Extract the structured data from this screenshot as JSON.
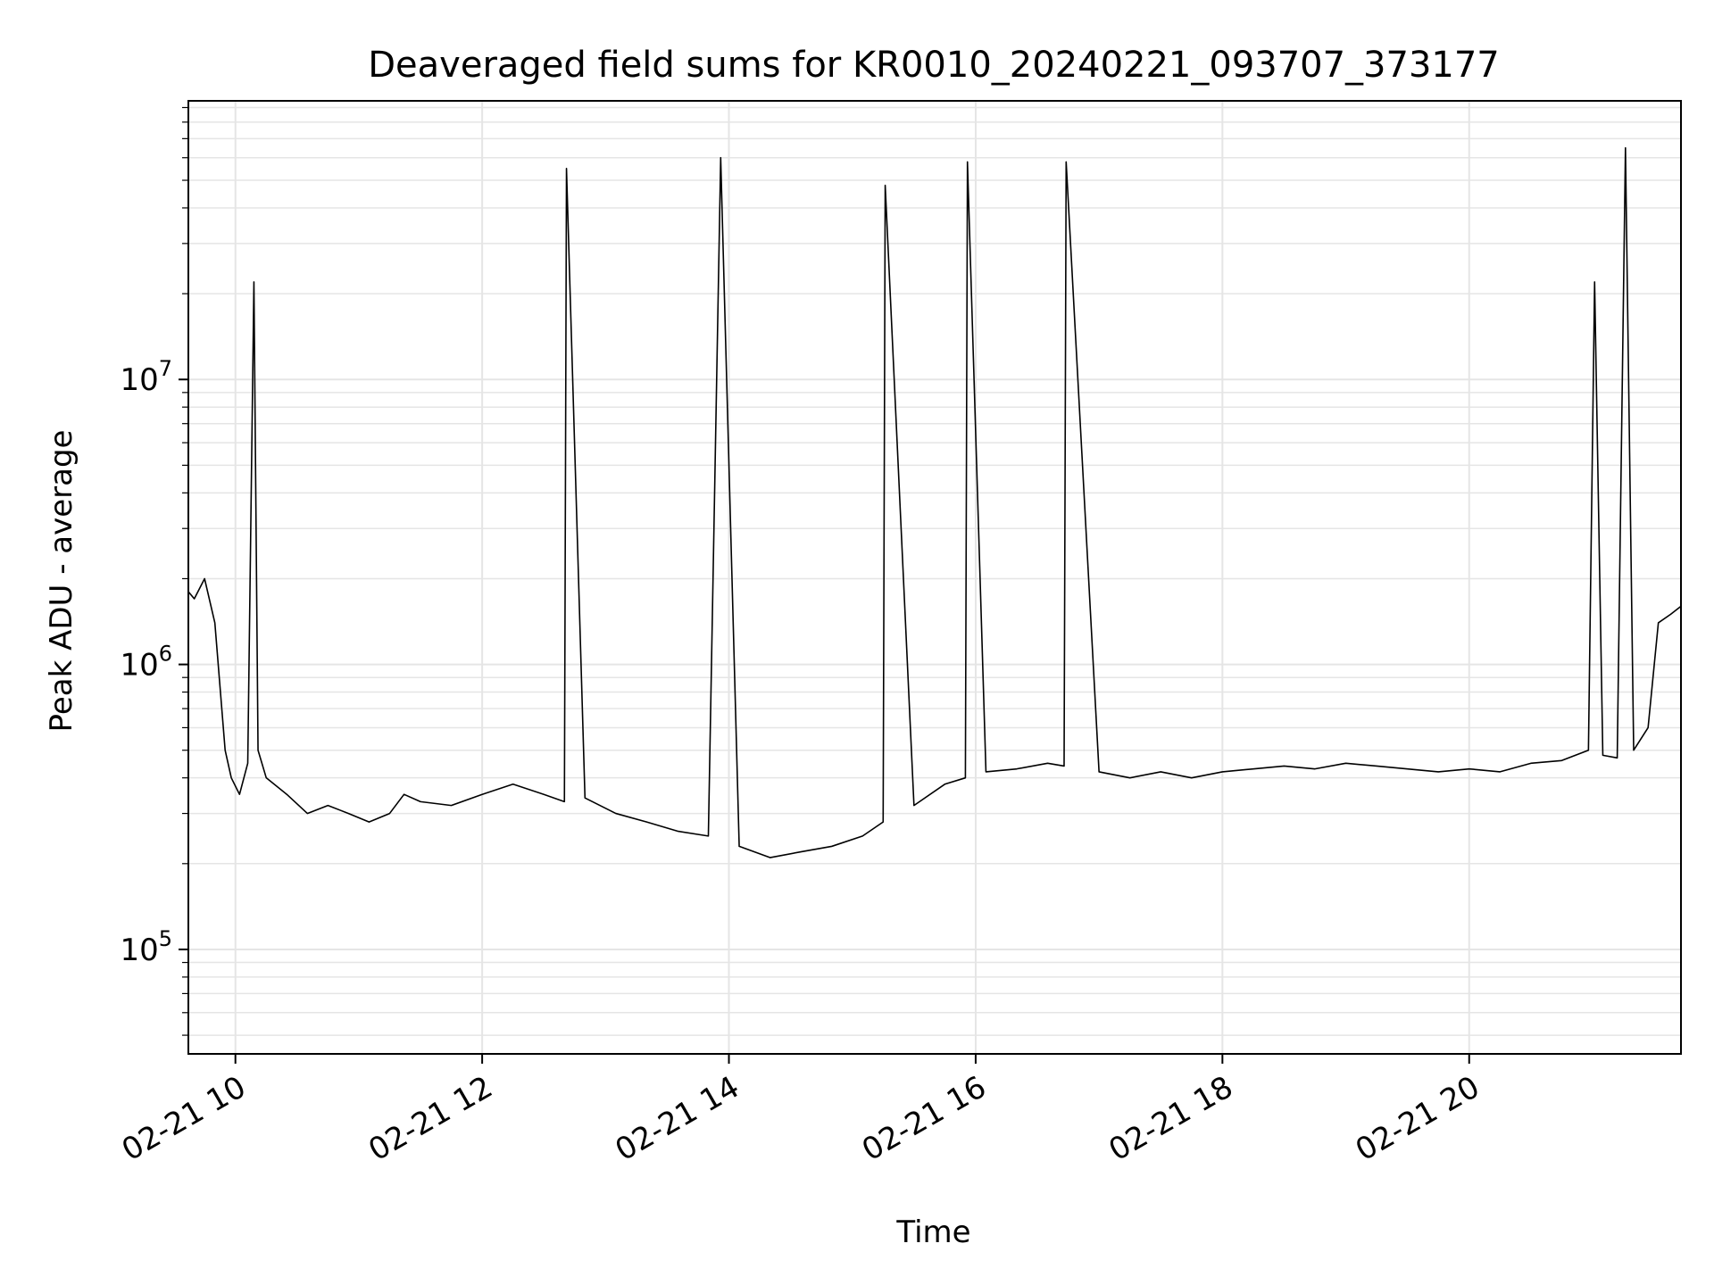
{
  "chart_data": {
    "type": "line",
    "title": "Deaveraged field sums for KR0010_20240221_093707_373177",
    "xlabel": "Time",
    "ylabel": "Peak ADU - average",
    "x_unit": "datetime",
    "xlim": [
      "2024-02-21T09:37:07",
      "2024-02-21T21:43:00"
    ],
    "ylim": [
      43000,
      95000000
    ],
    "y_scale": "log",
    "grid": true,
    "line_color": "#000000",
    "grid_color": "#e5e5e5",
    "x_ticks": [
      {
        "value": "2024-02-21T10:00:00",
        "label": "02-21 10"
      },
      {
        "value": "2024-02-21T12:00:00",
        "label": "02-21 12"
      },
      {
        "value": "2024-02-21T14:00:00",
        "label": "02-21 14"
      },
      {
        "value": "2024-02-21T16:00:00",
        "label": "02-21 16"
      },
      {
        "value": "2024-02-21T18:00:00",
        "label": "02-21 18"
      },
      {
        "value": "2024-02-21T20:00:00",
        "label": "02-21 20"
      }
    ],
    "y_ticks": [
      {
        "value": 100000,
        "base": "10",
        "exp": "5"
      },
      {
        "value": 1000000,
        "base": "10",
        "exp": "6"
      },
      {
        "value": 10000000,
        "base": "10",
        "exp": "7"
      }
    ],
    "series": [
      {
        "x": [
          "2024-02-21T09:37:07",
          "2024-02-21T09:40:00",
          "2024-02-21T09:45:00",
          "2024-02-21T09:50:00",
          "2024-02-21T09:55:00",
          "2024-02-21T09:58:00",
          "2024-02-21T10:02:00",
          "2024-02-21T10:06:00",
          "2024-02-21T10:09:00",
          "2024-02-21T10:11:00",
          "2024-02-21T10:15:00",
          "2024-02-21T10:25:00",
          "2024-02-21T10:35:00",
          "2024-02-21T10:45:00",
          "2024-02-21T10:55:00",
          "2024-02-21T11:05:00",
          "2024-02-21T11:15:00",
          "2024-02-21T11:22:00",
          "2024-02-21T11:30:00",
          "2024-02-21T11:45:00",
          "2024-02-21T12:00:00",
          "2024-02-21T12:15:00",
          "2024-02-21T12:30:00",
          "2024-02-21T12:40:00",
          "2024-02-21T12:41:00",
          "2024-02-21T12:50:00",
          "2024-02-21T13:05:00",
          "2024-02-21T13:20:00",
          "2024-02-21T13:35:00",
          "2024-02-21T13:50:00",
          "2024-02-21T13:56:00",
          "2024-02-21T14:05:00",
          "2024-02-21T14:20:00",
          "2024-02-21T14:35:00",
          "2024-02-21T14:50:00",
          "2024-02-21T15:05:00",
          "2024-02-21T15:15:00",
          "2024-02-21T15:16:00",
          "2024-02-21T15:30:00",
          "2024-02-21T15:45:00",
          "2024-02-21T15:55:00",
          "2024-02-21T15:56:00",
          "2024-02-21T16:05:00",
          "2024-02-21T16:20:00",
          "2024-02-21T16:35:00",
          "2024-02-21T16:43:00",
          "2024-02-21T16:44:00",
          "2024-02-21T17:00:00",
          "2024-02-21T17:15:00",
          "2024-02-21T17:30:00",
          "2024-02-21T17:45:00",
          "2024-02-21T18:00:00",
          "2024-02-21T18:15:00",
          "2024-02-21T18:30:00",
          "2024-02-21T18:45:00",
          "2024-02-21T19:00:00",
          "2024-02-21T19:15:00",
          "2024-02-21T19:30:00",
          "2024-02-21T19:45:00",
          "2024-02-21T20:00:00",
          "2024-02-21T20:15:00",
          "2024-02-21T20:30:00",
          "2024-02-21T20:45:00",
          "2024-02-21T20:58:00",
          "2024-02-21T21:01:00",
          "2024-02-21T21:05:00",
          "2024-02-21T21:12:00",
          "2024-02-21T21:16:00",
          "2024-02-21T21:20:00",
          "2024-02-21T21:27:00",
          "2024-02-21T21:32:00",
          "2024-02-21T21:38:00",
          "2024-02-21T21:43:00"
        ],
        "y": [
          1800000,
          1700000,
          2000000,
          1400000,
          500000,
          400000,
          350000,
          450000,
          22000000,
          500000,
          400000,
          350000,
          300000,
          320000,
          300000,
          280000,
          300000,
          350000,
          330000,
          320000,
          350000,
          380000,
          350000,
          330000,
          55000000,
          340000,
          300000,
          280000,
          260000,
          250000,
          60000000,
          230000,
          210000,
          220000,
          230000,
          250000,
          280000,
          48000000,
          320000,
          380000,
          400000,
          58000000,
          420000,
          430000,
          450000,
          440000,
          58000000,
          420000,
          400000,
          420000,
          400000,
          420000,
          430000,
          440000,
          430000,
          450000,
          440000,
          430000,
          420000,
          430000,
          420000,
          450000,
          460000,
          500000,
          22000000,
          480000,
          470000,
          65000000,
          500000,
          600000,
          1400000,
          1500000,
          1600000
        ]
      }
    ]
  }
}
